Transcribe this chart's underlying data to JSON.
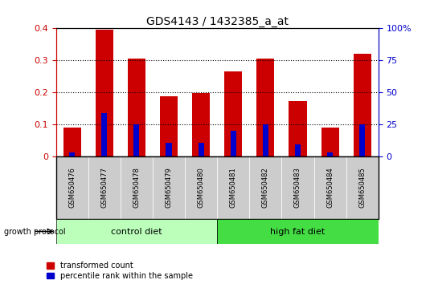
{
  "title": "GDS4143 / 1432385_a_at",
  "samples": [
    "GSM650476",
    "GSM650477",
    "GSM650478",
    "GSM650479",
    "GSM650480",
    "GSM650481",
    "GSM650482",
    "GSM650483",
    "GSM650484",
    "GSM650485"
  ],
  "red_values": [
    0.09,
    0.395,
    0.305,
    0.188,
    0.197,
    0.265,
    0.305,
    0.173,
    0.09,
    0.32
  ],
  "blue_values": [
    0.012,
    0.134,
    0.1,
    0.043,
    0.043,
    0.08,
    0.1,
    0.037,
    0.012,
    0.1
  ],
  "red_color": "#cc0000",
  "blue_color": "#0000cc",
  "bar_width": 0.55,
  "blue_bar_width": 0.18,
  "ylim": [
    0,
    0.4
  ],
  "yticks_left": [
    0,
    0.1,
    0.2,
    0.3,
    0.4
  ],
  "ytick_labels_left": [
    "0",
    "0.1",
    "0.2",
    "0.3",
    "0.4"
  ],
  "yticks_right": [
    0,
    0.1,
    0.2,
    0.3,
    0.4
  ],
  "ytick_labels_right": [
    "0",
    "25",
    "50",
    "75",
    "100%"
  ],
  "control_diet_indices": [
    0,
    1,
    2,
    3,
    4
  ],
  "high_fat_indices": [
    5,
    6,
    7,
    8,
    9
  ],
  "control_color": "#bbffbb",
  "high_fat_color": "#44dd44",
  "sample_cell_color": "#cccccc",
  "protocol_label": "growth protocol",
  "control_label": "control diet",
  "high_fat_label": "high fat diet",
  "legend_red": "transformed count",
  "legend_blue": "percentile rank within the sample"
}
